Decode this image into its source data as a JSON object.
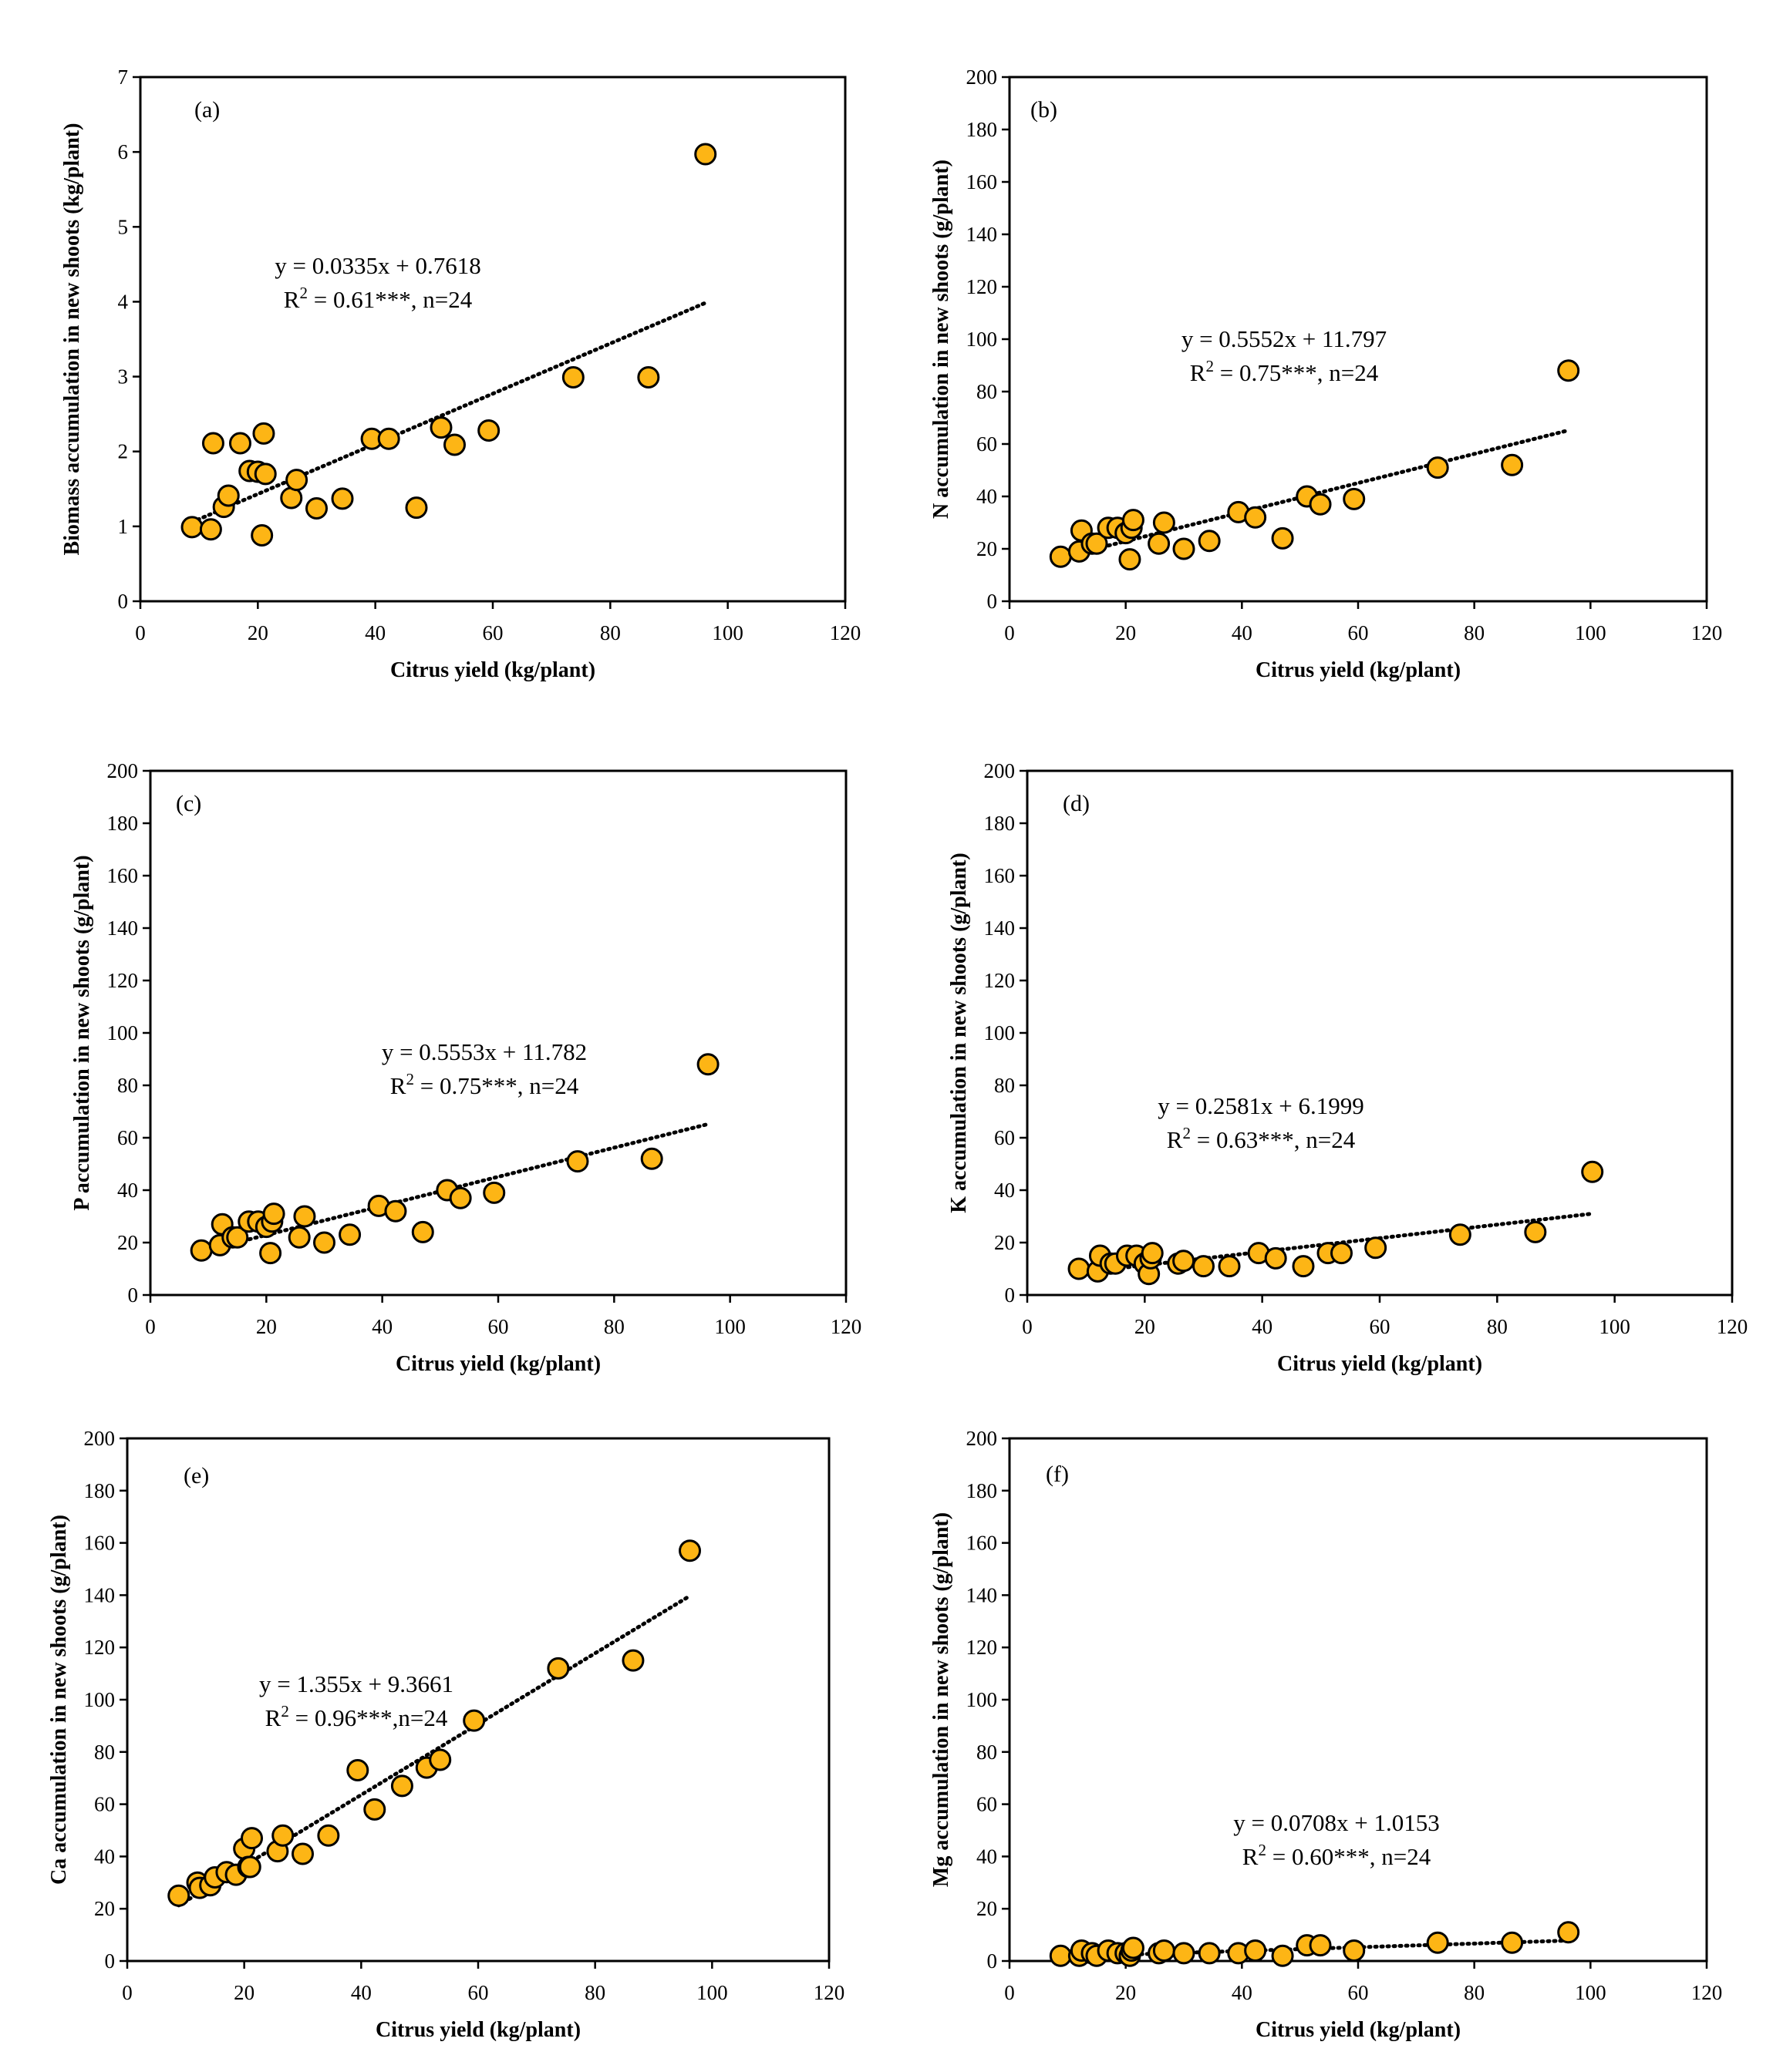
{
  "figure": {
    "colors": {
      "marker_fill": "#FDB515",
      "marker_stroke": "#000000",
      "axis": "#000000",
      "trend": "#000000"
    },
    "marker_icon": "filled-circle-marker"
  },
  "chart_data": [
    {
      "id": "a",
      "type": "scatter",
      "panel_label": "(a)",
      "xlabel": "Citrus yield (kg/plant)",
      "ylabel": "Biomass accumulation in new shoots (kg/plant)",
      "xlim": [
        0,
        120
      ],
      "ylim": [
        0,
        7
      ],
      "xticks": [
        "0",
        "20",
        "40",
        "60",
        "80",
        "100",
        "120"
      ],
      "yticks": [
        "0",
        "1",
        "2",
        "3",
        "4",
        "5",
        "6",
        "7"
      ],
      "x": [
        8.8,
        12.0,
        12.4,
        14.2,
        15.0,
        17.0,
        18.6,
        20.0,
        20.7,
        21.0,
        21.3,
        25.7,
        26.6,
        30.0,
        34.4,
        39.4,
        42.3,
        47.0,
        51.2,
        53.5,
        59.3,
        73.7,
        86.5,
        96.2
      ],
      "y": [
        0.99,
        0.96,
        2.11,
        1.26,
        1.41,
        2.11,
        1.74,
        1.73,
        0.88,
        2.24,
        1.7,
        1.38,
        1.62,
        1.24,
        1.37,
        2.17,
        2.17,
        1.25,
        2.32,
        2.09,
        2.28,
        2.99,
        2.99,
        5.97
      ],
      "trend": {
        "slope": 0.0335,
        "intercept": 0.7618,
        "x_range": [
          8.8,
          96.2
        ]
      },
      "equation": "y = 0.0335x + 0.7618",
      "r2": {
        "prefix": "R",
        "sup": "2",
        "rest": " = 0.61***, n=24"
      }
    },
    {
      "id": "b",
      "type": "scatter",
      "panel_label": "(b)",
      "xlabel": "Citrus yield (kg/plant)",
      "ylabel": "N accumulation in new shoots (g/plant)",
      "xlim": [
        0,
        120
      ],
      "ylim": [
        0,
        200
      ],
      "xticks": [
        "0",
        "20",
        "40",
        "60",
        "80",
        "100",
        "120"
      ],
      "yticks": [
        "0",
        "20",
        "40",
        "60",
        "80",
        "100",
        "120",
        "140",
        "160",
        "180",
        "200"
      ],
      "x": [
        8.8,
        12.0,
        12.4,
        14.2,
        15.0,
        17.0,
        18.6,
        20.0,
        20.7,
        21.0,
        21.3,
        25.7,
        26.6,
        30.0,
        34.4,
        39.4,
        42.3,
        47.0,
        51.2,
        53.5,
        59.3,
        73.7,
        86.5,
        96.2
      ],
      "y": [
        17,
        19,
        27,
        22,
        22,
        28,
        28,
        26,
        16,
        28,
        31,
        22,
        30,
        20,
        23,
        34,
        32,
        24,
        40,
        37,
        39,
        51,
        52,
        88
      ],
      "trend": {
        "slope": 0.5552,
        "intercept": 11.797,
        "x_range": [
          8.8,
          96.2
        ]
      },
      "equation": "y = 0.5552x + 11.797",
      "r2": {
        "prefix": "R",
        "sup": "2",
        "rest": " = 0.75***, n=24"
      }
    },
    {
      "id": "c",
      "type": "scatter",
      "panel_label": "(c)",
      "xlabel": "Citrus yield (kg/plant)",
      "ylabel": "P accumulation in new shoots (g/plant)",
      "xlim": [
        0,
        120
      ],
      "ylim": [
        0,
        200
      ],
      "xticks": [
        "0",
        "20",
        "40",
        "60",
        "80",
        "100",
        "120"
      ],
      "yticks": [
        "0",
        "20",
        "40",
        "60",
        "80",
        "100",
        "120",
        "140",
        "160",
        "180",
        "200"
      ],
      "x": [
        8.8,
        12.0,
        12.4,
        14.2,
        15.0,
        17.0,
        18.6,
        20.0,
        20.7,
        21.0,
        21.3,
        25.7,
        26.6,
        30.0,
        34.4,
        39.4,
        42.3,
        47.0,
        51.2,
        53.5,
        59.3,
        73.7,
        86.5,
        96.2
      ],
      "y": [
        17,
        19,
        27,
        22,
        22,
        28,
        28,
        26,
        16,
        28,
        31,
        22,
        30,
        20,
        23,
        34,
        32,
        24,
        40,
        37,
        39,
        51,
        52,
        88
      ],
      "trend": {
        "slope": 0.5553,
        "intercept": 11.782,
        "x_range": [
          8.8,
          96.2
        ]
      },
      "equation": "y = 0.5553x + 11.782",
      "r2": {
        "prefix": "R",
        "sup": "2",
        "rest": " = 0.75***, n=24"
      }
    },
    {
      "id": "d",
      "type": "scatter",
      "panel_label": "(d)",
      "xlabel": "Citrus yield (kg/plant)",
      "ylabel": "K accumulation in new shoots (g/plant)",
      "xlim": [
        0,
        120
      ],
      "ylim": [
        0,
        200
      ],
      "xticks": [
        "0",
        "20",
        "40",
        "60",
        "80",
        "100",
        "120"
      ],
      "yticks": [
        "0",
        "20",
        "40",
        "60",
        "80",
        "100",
        "120",
        "140",
        "160",
        "180",
        "200"
      ],
      "x": [
        8.8,
        12.0,
        12.4,
        14.2,
        15.0,
        17.0,
        18.6,
        20.0,
        20.7,
        21.0,
        21.3,
        25.7,
        26.6,
        30.0,
        34.4,
        39.4,
        42.3,
        47.0,
        51.2,
        53.5,
        59.3,
        73.7,
        86.5,
        96.2
      ],
      "y": [
        10,
        9,
        15,
        12,
        12,
        15,
        15,
        12,
        8,
        14,
        16,
        12,
        13,
        11,
        11,
        16,
        14,
        11,
        16,
        16,
        18,
        23,
        24,
        47
      ],
      "trend": {
        "slope": 0.2581,
        "intercept": 6.1999,
        "x_range": [
          8.8,
          96.2
        ]
      },
      "equation": "y = 0.2581x + 6.1999",
      "r2": {
        "prefix": "R",
        "sup": "2",
        "rest": " = 0.63***, n=24"
      }
    },
    {
      "id": "e",
      "type": "scatter",
      "panel_label": "(e)",
      "xlabel": "Citrus yield (kg/plant)",
      "ylabel": "Ca accumulation in new shoots (g/plant)",
      "xlim": [
        0,
        120
      ],
      "ylim": [
        0,
        200
      ],
      "xticks": [
        "0",
        "20",
        "40",
        "60",
        "80",
        "100",
        "120"
      ],
      "yticks": [
        "0",
        "20",
        "40",
        "60",
        "80",
        "100",
        "120",
        "140",
        "160",
        "180",
        "200"
      ],
      "x": [
        8.8,
        12.0,
        12.4,
        14.2,
        15.0,
        17.0,
        18.6,
        20.0,
        20.7,
        21.0,
        21.3,
        25.7,
        26.6,
        30.0,
        34.4,
        39.4,
        42.3,
        47.0,
        51.2,
        53.5,
        59.3,
        73.7,
        86.5,
        96.2
      ],
      "y": [
        25,
        30,
        28,
        29,
        32,
        34,
        33,
        43,
        36,
        36,
        47,
        42,
        48,
        41,
        48,
        73,
        58,
        67,
        74,
        77,
        92,
        112,
        115,
        157
      ],
      "trend": {
        "slope": 1.355,
        "intercept": 9.3661,
        "x_range": [
          8.8,
          96.2
        ]
      },
      "equation": "y = 1.355x + 9.3661",
      "r2": {
        "prefix": "R",
        "sup": "2",
        "rest": " = 0.96***,n=24"
      }
    },
    {
      "id": "f",
      "type": "scatter",
      "panel_label": "(f)",
      "xlabel": "Citrus yield (kg/plant)",
      "ylabel": "Mg accumulation in new shoots (g/plant)",
      "xlim": [
        0,
        120
      ],
      "ylim": [
        0,
        200
      ],
      "xticks": [
        "0",
        "20",
        "40",
        "60",
        "80",
        "100",
        "120"
      ],
      "yticks": [
        "0",
        "20",
        "40",
        "60",
        "80",
        "100",
        "120",
        "140",
        "160",
        "180",
        "200"
      ],
      "x": [
        8.8,
        12.0,
        12.4,
        14.2,
        15.0,
        17.0,
        18.6,
        20.0,
        20.7,
        21.0,
        21.3,
        25.7,
        26.6,
        30.0,
        34.4,
        39.4,
        42.3,
        47.0,
        51.2,
        53.5,
        59.3,
        73.7,
        86.5,
        96.2
      ],
      "y": [
        2,
        2,
        4,
        3,
        2,
        4,
        3,
        3,
        2,
        4,
        5,
        3,
        4,
        3,
        3,
        3,
        4,
        2,
        6,
        6,
        4,
        7,
        7,
        11
      ],
      "trend": {
        "slope": 0.0708,
        "intercept": 1.0153,
        "x_range": [
          8.8,
          96.2
        ]
      },
      "equation": "y = 0.0708x + 1.0153",
      "r2": {
        "prefix": "R",
        "sup": "2",
        "rest": " = 0.60***, n=24"
      }
    }
  ]
}
